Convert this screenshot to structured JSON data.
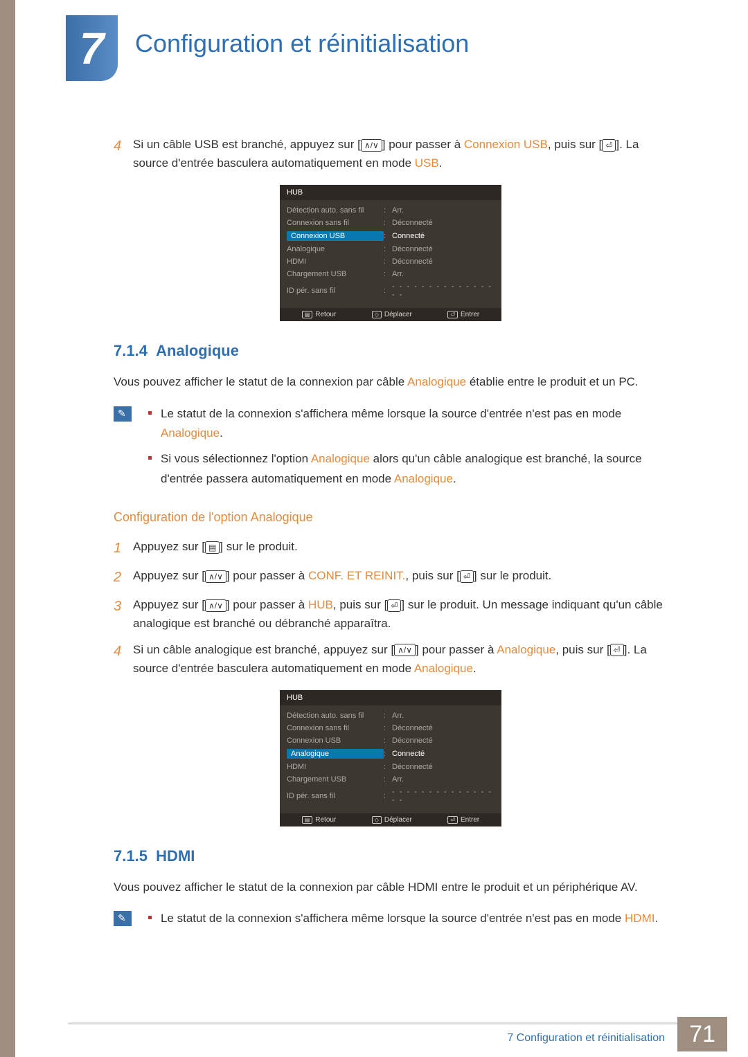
{
  "chapter": {
    "number": "7",
    "title": "Configuration et réinitialisation"
  },
  "intro_step": {
    "num": "4",
    "text_a": "Si un câble USB est branché, appuyez sur [",
    "text_b": "] pour passer à ",
    "link1": "Connexion USB",
    "text_c": ", puis sur [",
    "text_d": "]. La source d'entrée basculera automatiquement en mode ",
    "link2": "USB",
    "text_e": "."
  },
  "osd1": {
    "title": "HUB",
    "rows": [
      {
        "label": "Détection auto. sans fil",
        "val": "Arr.",
        "sel": false
      },
      {
        "label": "Connexion sans fil",
        "val": "Déconnecté",
        "sel": false
      },
      {
        "label": "Connexion USB",
        "val": "Connecté",
        "sel": true
      },
      {
        "label": "Analogique",
        "val": "Déconnecté",
        "sel": false
      },
      {
        "label": "HDMI",
        "val": "Déconnecté",
        "sel": false
      },
      {
        "label": "Chargement USB",
        "val": "Arr.",
        "sel": false
      },
      {
        "label": "ID pér. sans fil",
        "val": "- - - - - - - - - - - - - - - -",
        "sel": false,
        "dash": true
      }
    ],
    "footer": {
      "retour": "Retour",
      "deplacer": "Déplacer",
      "entrer": "Entrer"
    }
  },
  "sec714": {
    "num": "7.1.4",
    "title": "Analogique",
    "para_a": "Vous pouvez afficher le statut de la connexion par câble ",
    "para_hl": "Analogique",
    "para_b": " établie entre le produit et un PC."
  },
  "note714": {
    "b1_a": "Le statut de la connexion s'affichera même lorsque la source d'entrée n'est pas en mode ",
    "b1_hl": "Analogique",
    "b1_b": ".",
    "b2_a": "Si vous sélectionnez l'option ",
    "b2_hl1": "Analogique",
    "b2_b": " alors qu'un câble analogique est branché, la source d'entrée passera automatiquement en mode ",
    "b2_hl2": "Analogique",
    "b2_c": "."
  },
  "subheading714": "Configuration de l'option Analogique",
  "steps714": [
    {
      "n": "1",
      "a": "Appuyez sur [",
      "b": "] sur le produit."
    },
    {
      "n": "2",
      "a": "Appuyez sur [",
      "b": "] pour passer à ",
      "hl": "CONF. ET REINIT.",
      "c": ", puis sur [",
      "d": "] sur le produit."
    },
    {
      "n": "3",
      "a": "Appuyez sur [",
      "b": "] pour passer à ",
      "hl": "HUB",
      "c": ", puis sur [",
      "d": "] sur le produit. Un message indiquant qu'un câble analogique est branché ou débranché apparaîtra."
    },
    {
      "n": "4",
      "a": "Si un câble analogique est branché, appuyez sur [",
      "b": "] pour passer à ",
      "hl": "Analogique",
      "c": ", puis sur [",
      "d": "]. La source d'entrée basculera automatiquement en mode ",
      "hl2": "Analogique",
      "e": "."
    }
  ],
  "osd2": {
    "title": "HUB",
    "rows": [
      {
        "label": "Détection auto. sans fil",
        "val": "Arr.",
        "sel": false
      },
      {
        "label": "Connexion sans fil",
        "val": "Déconnecté",
        "sel": false
      },
      {
        "label": "Connexion USB",
        "val": "Déconnecté",
        "sel": false
      },
      {
        "label": "Analogique",
        "val": "Connecté",
        "sel": true
      },
      {
        "label": "HDMI",
        "val": "Déconnecté",
        "sel": false
      },
      {
        "label": "Chargement USB",
        "val": "Arr.",
        "sel": false
      },
      {
        "label": "ID pér. sans fil",
        "val": "- - - - - - - - - - - - - - - -",
        "sel": false,
        "dash": true
      }
    ],
    "footer": {
      "retour": "Retour",
      "deplacer": "Déplacer",
      "entrer": "Entrer"
    }
  },
  "sec715": {
    "num": "7.1.5",
    "title": "HDMI",
    "para": "Vous pouvez afficher le statut de la connexion par câble HDMI entre le produit et un périphérique AV."
  },
  "note715": {
    "b1_a": "Le statut de la connexion s'affichera même lorsque la source d'entrée n'est pas en mode ",
    "b1_hl": "HDMI",
    "b1_b": "."
  },
  "footer": {
    "label_a": "7 Configuration et réinitialisation",
    "page": "71"
  },
  "icons": {
    "updown": "∧/∨",
    "enter": "⏎",
    "menu": "▤",
    "move": "◇"
  }
}
